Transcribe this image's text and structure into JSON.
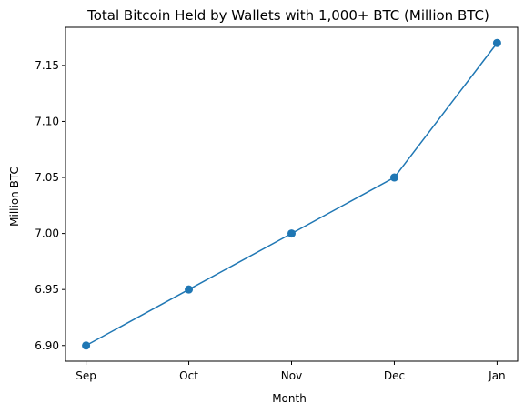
{
  "chart_data": {
    "type": "line",
    "title": "Total Bitcoin Held by Wallets with 1,000+ BTC (Million BTC)",
    "xlabel": "Month",
    "ylabel": "Million BTC",
    "categories": [
      "Sep",
      "Oct",
      "Nov",
      "Dec",
      "Jan"
    ],
    "series": [
      {
        "values": [
          6.9,
          6.95,
          7.0,
          7.05,
          7.17
        ],
        "color": "#1f77b4",
        "marker": "circle"
      }
    ],
    "ylim": [
      6.886,
      7.184
    ],
    "yticks": [
      6.9,
      6.95,
      7.0,
      7.05,
      7.1,
      7.15
    ],
    "ytick_labels": [
      "6.90",
      "6.95",
      "7.00",
      "7.05",
      "7.10",
      "7.15"
    ],
    "grid": false,
    "legend": "none"
  }
}
